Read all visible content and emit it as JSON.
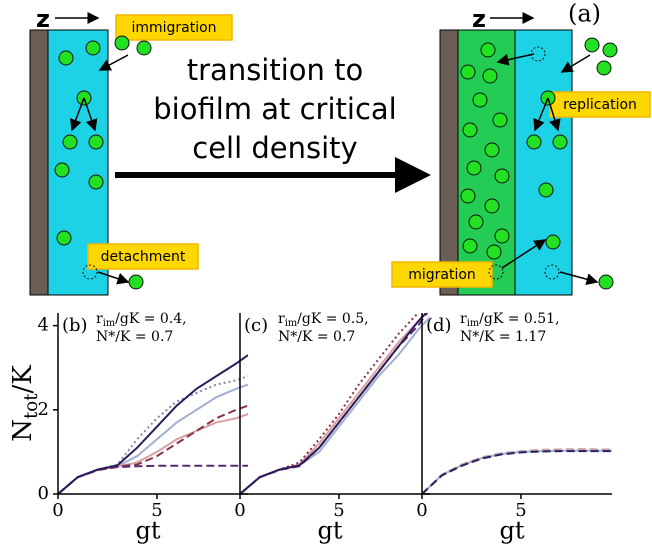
{
  "diagram": {
    "z_left": "z",
    "z_right": "z",
    "panel_a": "(a)",
    "immigration": "immigration",
    "detachment": "detachment",
    "replication": "replication",
    "migration": "migration",
    "transition": [
      "transition to",
      "biofilm at critical",
      "cell density"
    ]
  },
  "chart_data": [
    {
      "type": "line",
      "panel": "(b)",
      "annotation": [
        [
          {
            "text": "r"
          },
          {
            "text": "im",
            "sub": true
          },
          {
            "text": "/gK = 0.4,"
          }
        ],
        [
          {
            "text": "N*/K = 0.7"
          }
        ]
      ],
      "ylabel": [
        {
          "text": "N"
        },
        {
          "text": "tot",
          "sub": true
        },
        {
          "text": "/K"
        }
      ],
      "xlabel": "gt",
      "xlim": [
        0,
        9.6
      ],
      "ylim": [
        0,
        4.3
      ],
      "xticks": [
        0,
        5
      ],
      "yticks": [
        0,
        2,
        4
      ],
      "x": [
        0,
        1,
        2,
        3,
        4,
        5,
        6,
        7,
        8,
        9,
        9.6
      ],
      "series": [
        {
          "color": "#9fb0d0",
          "dash": "solid",
          "values": [
            0,
            0.4,
            0.58,
            0.66,
            0.9,
            1.3,
            1.7,
            2.0,
            2.3,
            2.5,
            2.6
          ]
        },
        {
          "color": "#d9a0a0",
          "dash": "solid",
          "values": [
            0,
            0.4,
            0.57,
            0.65,
            0.75,
            1.0,
            1.3,
            1.5,
            1.7,
            1.8,
            1.9
          ]
        },
        {
          "color": "#7f8aa8",
          "dash": "dotted",
          "values": [
            0,
            0.4,
            0.58,
            0.7,
            1.3,
            1.8,
            2.2,
            2.4,
            2.6,
            2.7,
            2.8
          ]
        },
        {
          "color": "#8b2f4a",
          "dash": "dashed",
          "values": [
            0,
            0.4,
            0.57,
            0.65,
            0.7,
            0.9,
            1.2,
            1.5,
            1.8,
            2.0,
            2.1
          ]
        },
        {
          "color": "#5a2a6e",
          "dash": "dashed",
          "values": [
            0,
            0.4,
            0.57,
            0.64,
            0.66,
            0.67,
            0.67,
            0.67,
            0.67,
            0.67,
            0.67
          ]
        },
        {
          "color": "#2b1d5c",
          "dash": "solid",
          "values": [
            0,
            0.4,
            0.58,
            0.68,
            1.1,
            1.6,
            2.1,
            2.5,
            2.8,
            3.1,
            3.3
          ]
        }
      ]
    },
    {
      "type": "line",
      "panel": "(c)",
      "annotation": [
        [
          {
            "text": "r"
          },
          {
            "text": "im",
            "sub": true
          },
          {
            "text": "/gK = 0.5,"
          }
        ],
        [
          {
            "text": "N*/K = 0.7"
          }
        ]
      ],
      "xlabel": "gt",
      "xlim": [
        0,
        9.6
      ],
      "ylim": [
        0,
        4.3
      ],
      "xticks": [
        0,
        5
      ],
      "x": [
        0,
        1,
        2,
        3,
        4,
        5,
        6,
        7,
        8,
        9,
        9.6
      ],
      "series": [
        {
          "color": "#9fb0d0",
          "dash": "solid",
          "values": [
            0,
            0.4,
            0.58,
            0.68,
            1.0,
            1.6,
            2.2,
            2.8,
            3.3,
            3.9,
            4.2
          ]
        },
        {
          "color": "#d9a0a0",
          "dash": "solid",
          "values": [
            0,
            0.4,
            0.58,
            0.7,
            1.2,
            1.8,
            2.4,
            3.0,
            3.6,
            4.1,
            4.4
          ]
        },
        {
          "color": "#8b2f4a",
          "dash": "dotted",
          "values": [
            0,
            0.4,
            0.58,
            0.75,
            1.3,
            1.9,
            2.6,
            3.2,
            3.8,
            4.3,
            4.6
          ]
        },
        {
          "color": "#5a2a6e",
          "dash": "dashed",
          "values": [
            0,
            0.4,
            0.57,
            0.66,
            1.1,
            1.7,
            2.3,
            2.9,
            3.5,
            4.0,
            4.4
          ]
        },
        {
          "color": "#2b1d5c",
          "dash": "solid",
          "values": [
            0,
            0.4,
            0.58,
            0.68,
            1.1,
            1.7,
            2.3,
            2.9,
            3.5,
            4.1,
            4.4
          ]
        }
      ]
    },
    {
      "type": "line",
      "panel": "(d)",
      "annotation": [
        [
          {
            "text": "r"
          },
          {
            "text": "im",
            "sub": true
          },
          {
            "text": "/gK = 0.51,"
          }
        ],
        [
          {
            "text": "N*/K = 1.17"
          }
        ]
      ],
      "xlabel": "gt",
      "xlim": [
        0,
        9.6
      ],
      "ylim": [
        0,
        4.3
      ],
      "xticks": [
        0,
        5
      ],
      "x": [
        0,
        1,
        2,
        3,
        4,
        5,
        6,
        7,
        8,
        9,
        9.6
      ],
      "series": [
        {
          "color": "#d9a0a0",
          "dash": "dashed",
          "values": [
            0,
            0.46,
            0.7,
            0.87,
            0.97,
            1.02,
            1.05,
            1.06,
            1.07,
            1.06,
            1.06
          ]
        },
        {
          "color": "#9fb0d0",
          "dash": "solid",
          "values": [
            0,
            0.45,
            0.68,
            0.85,
            0.95,
            1.0,
            1.02,
            1.03,
            1.03,
            1.03,
            1.03
          ]
        },
        {
          "color": "#2b1d5c",
          "dash": "dashed",
          "values": [
            0,
            0.44,
            0.67,
            0.84,
            0.94,
            0.99,
            1.01,
            1.02,
            1.02,
            1.02,
            1.02
          ]
        }
      ]
    }
  ]
}
